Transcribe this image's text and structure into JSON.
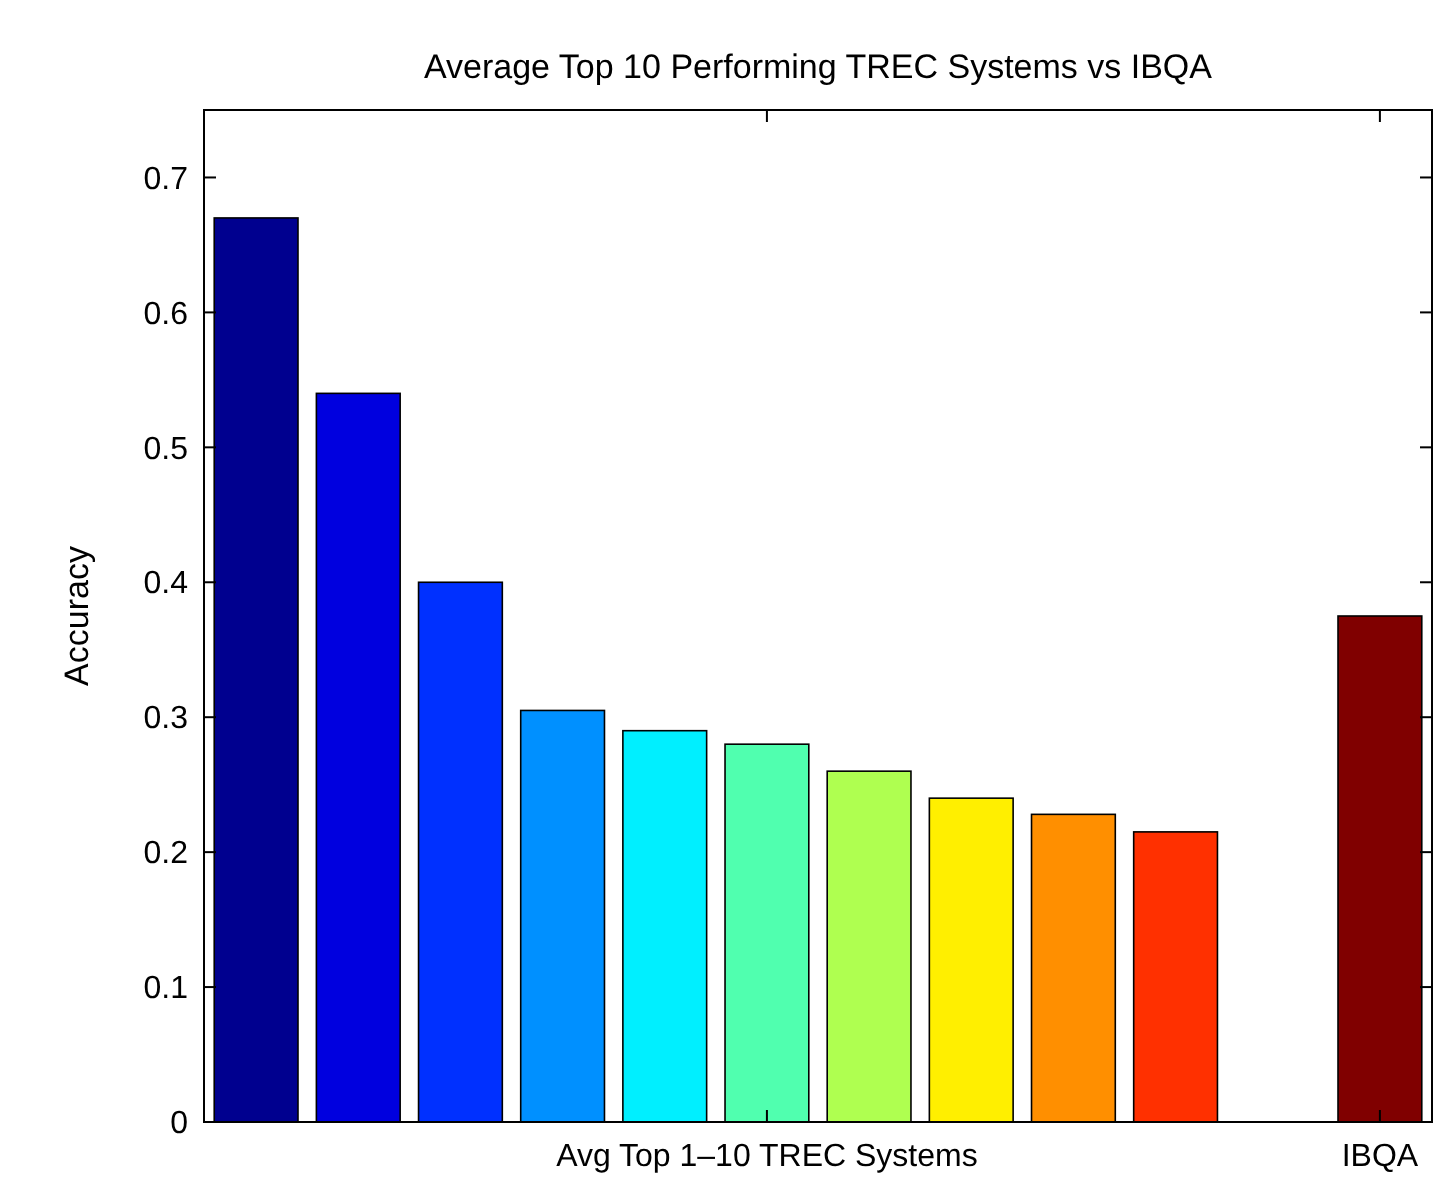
{
  "chart_data": {
    "type": "bar",
    "title": "Average Top 10 Performing TREC Systems vs IBQA",
    "ylabel": "Accuracy",
    "categories": [
      null,
      null,
      null,
      null,
      null,
      "Avg Top 1–10 TREC Systems",
      null,
      null,
      null,
      null,
      null,
      "IBQA"
    ],
    "values": [
      0.67,
      0.54,
      0.4,
      0.305,
      0.29,
      0.28,
      0.26,
      0.24,
      0.228,
      0.215,
      0,
      0.375
    ],
    "colors": [
      "#00008f",
      "#0000df",
      "#0030ff",
      "#0090ff",
      "#00efff",
      "#50ffaf",
      "#afff50",
      "#ffef00",
      "#ff8f00",
      "#ff3000",
      "#df0000",
      "#800000"
    ],
    "ylim": [
      0,
      0.75
    ],
    "yticks": [
      0,
      0.1,
      0.2,
      0.3,
      0.4,
      0.5,
      0.6,
      0.7
    ],
    "grid": false
  }
}
